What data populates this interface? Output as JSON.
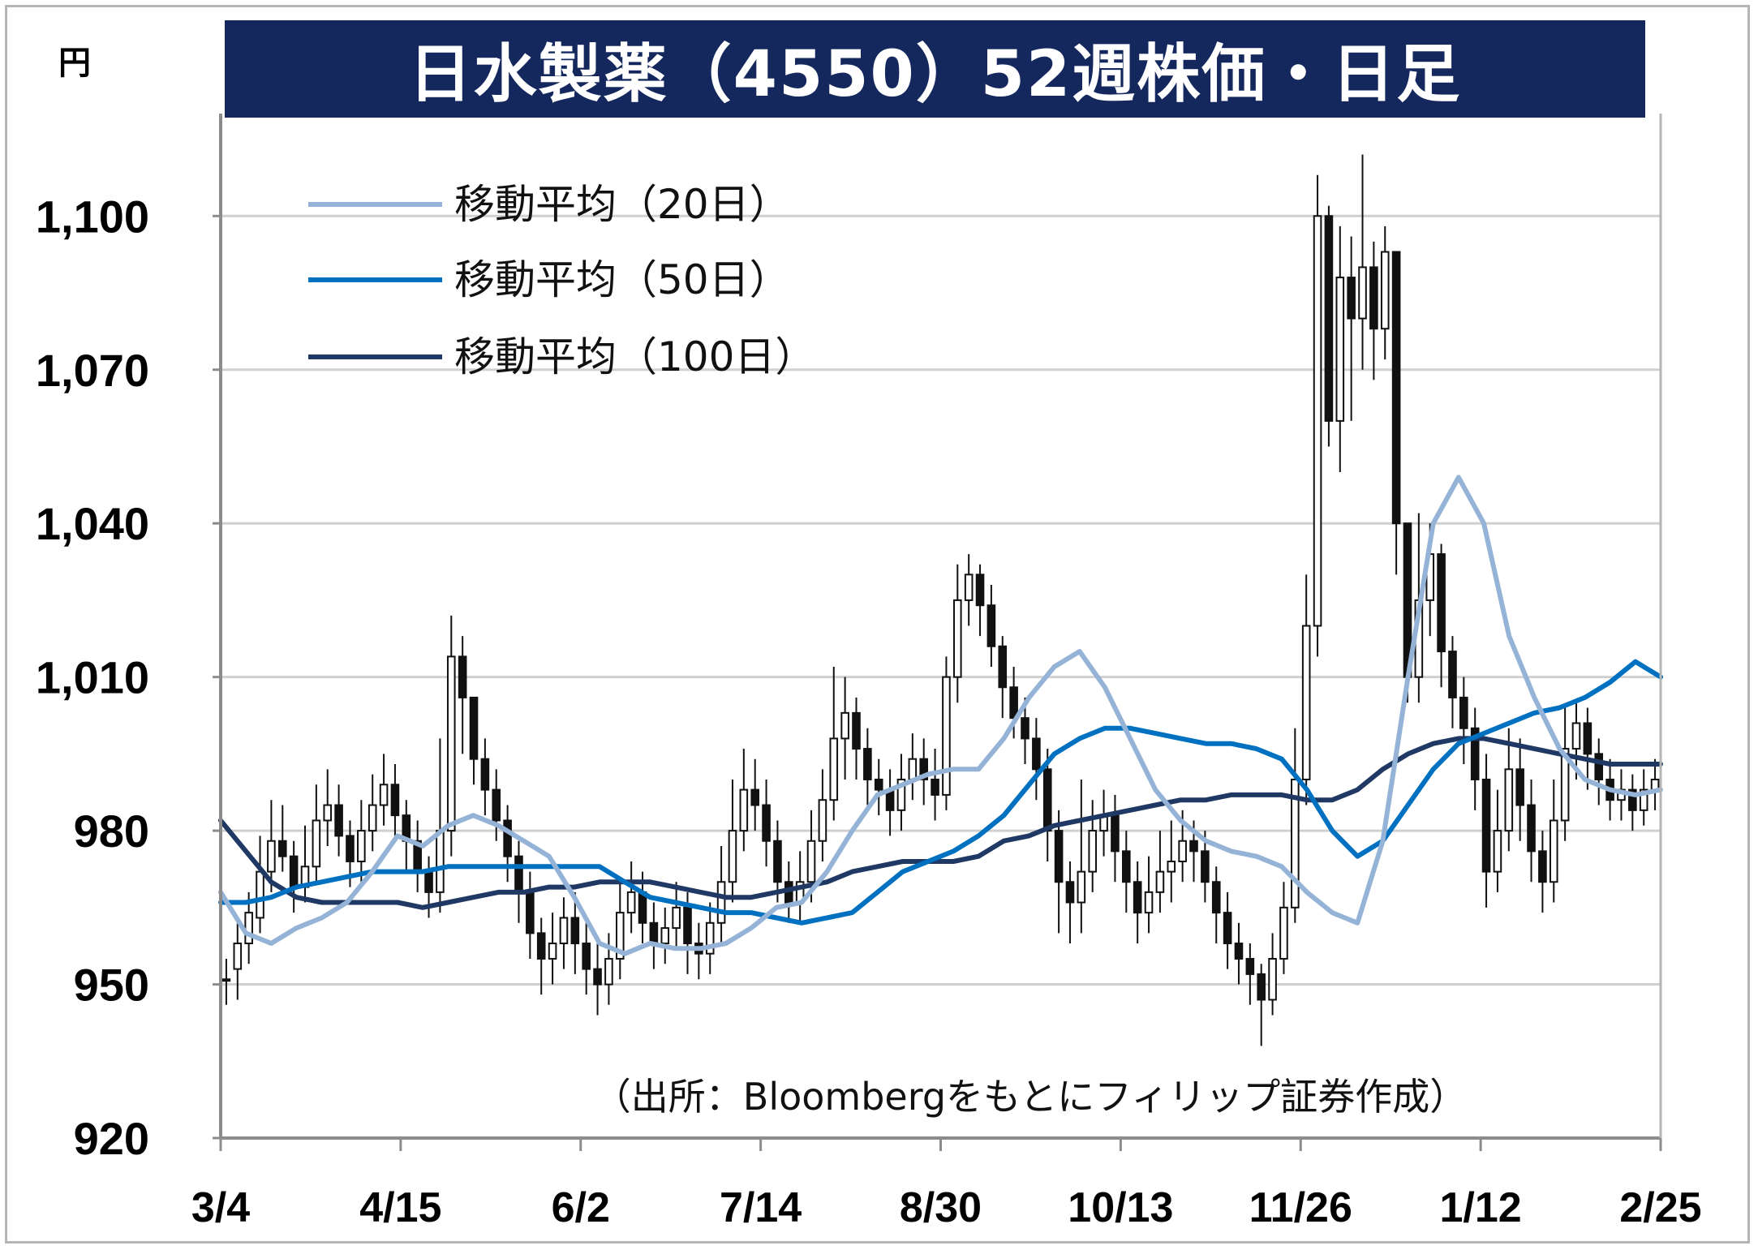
{
  "title": "日水製薬（4550）52週株価・日足",
  "unit": "円",
  "source": "（出所：Bloombergをもとにフィリップ証券作成）",
  "chart_data": {
    "type": "candlestick",
    "title": "日水製薬（4550）52週株価・日足",
    "ylabel": "円",
    "ylim": [
      920,
      1120
    ],
    "yticks": [
      920,
      950,
      980,
      1010,
      1040,
      1070,
      1100
    ],
    "ytick_labels": [
      "920",
      "950",
      "980",
      "1,010",
      "1,040",
      "1,070",
      "1,100"
    ],
    "xtick_labels": [
      "3/4",
      "4/15",
      "6/2",
      "7/14",
      "8/30",
      "10/13",
      "11/26",
      "1/12",
      "2/25"
    ],
    "grid": true,
    "legend_position": "top-left",
    "series": [
      {
        "name": "移動平均（20日）",
        "color": "#95b3d7",
        "values": [
          968,
          960,
          958,
          961,
          963,
          966,
          972,
          979,
          977,
          981,
          983,
          981,
          978,
          975,
          967,
          958,
          956,
          958,
          957,
          957,
          958,
          961,
          965,
          966,
          972,
          980,
          987,
          989,
          991,
          992,
          992,
          998,
          1006,
          1012,
          1015,
          1008,
          998,
          988,
          982,
          978,
          976,
          975,
          973,
          968,
          964,
          962,
          978,
          1010,
          1040,
          1049,
          1040,
          1018,
          1006,
          996,
          990,
          988,
          987,
          988
        ]
      },
      {
        "name": "移動平均（50日）",
        "color": "#0070c0",
        "values": [
          966,
          966,
          967,
          969,
          970,
          971,
          972,
          972,
          972,
          973,
          973,
          973,
          973,
          973,
          973,
          973,
          970,
          967,
          966,
          965,
          964,
          964,
          963,
          962,
          963,
          964,
          968,
          972,
          974,
          976,
          979,
          983,
          989,
          995,
          998,
          1000,
          1000,
          999,
          998,
          997,
          997,
          996,
          994,
          988,
          980,
          975,
          978,
          985,
          992,
          997,
          999,
          1001,
          1003,
          1004,
          1006,
          1009,
          1013,
          1010
        ]
      },
      {
        "name": "移動平均（100日）",
        "color": "#1f3864",
        "values": [
          982,
          976,
          970,
          967,
          966,
          966,
          966,
          966,
          965,
          966,
          967,
          968,
          968,
          969,
          969,
          970,
          970,
          970,
          969,
          968,
          967,
          967,
          968,
          969,
          970,
          972,
          973,
          974,
          974,
          974,
          975,
          978,
          979,
          981,
          982,
          983,
          984,
          985,
          986,
          986,
          987,
          987,
          987,
          986,
          986,
          988,
          992,
          995,
          997,
          998,
          998,
          997,
          996,
          995,
          994,
          993,
          993,
          993
        ]
      }
    ],
    "candles": [
      [
        951,
        951,
        955,
        946
      ],
      [
        953,
        958,
        962,
        947
      ],
      [
        958,
        964,
        968,
        954
      ],
      [
        963,
        972,
        979,
        960
      ],
      [
        972,
        978,
        986,
        968
      ],
      [
        978,
        975,
        985,
        972
      ],
      [
        975,
        969,
        978,
        964
      ],
      [
        969,
        973,
        981,
        966
      ],
      [
        973,
        982,
        989,
        970
      ],
      [
        982,
        985,
        992,
        977
      ],
      [
        985,
        979,
        989,
        975
      ],
      [
        979,
        974,
        982,
        969
      ],
      [
        974,
        980,
        986,
        970
      ],
      [
        980,
        985,
        991,
        976
      ],
      [
        985,
        989,
        995,
        981
      ],
      [
        989,
        983,
        993,
        979
      ],
      [
        983,
        978,
        986,
        972
      ],
      [
        978,
        972,
        982,
        968
      ],
      [
        972,
        968,
        975,
        963
      ],
      [
        968,
        980,
        998,
        964
      ],
      [
        980,
        1014,
        1022,
        975
      ],
      [
        1014,
        1006,
        1018,
        995
      ],
      [
        1006,
        994,
        1002,
        989
      ],
      [
        994,
        988,
        998,
        983
      ],
      [
        988,
        982,
        992,
        978
      ],
      [
        982,
        975,
        985,
        970
      ],
      [
        975,
        968,
        978,
        962
      ],
      [
        968,
        960,
        972,
        955
      ],
      [
        960,
        955,
        963,
        948
      ],
      [
        955,
        958,
        964,
        950
      ],
      [
        958,
        963,
        967,
        953
      ],
      [
        963,
        958,
        968,
        952
      ],
      [
        958,
        953,
        962,
        948
      ],
      [
        953,
        950,
        958,
        944
      ],
      [
        950,
        955,
        960,
        946
      ],
      [
        955,
        964,
        970,
        951
      ],
      [
        964,
        968,
        974,
        960
      ],
      [
        968,
        962,
        972,
        958
      ],
      [
        962,
        958,
        966,
        953
      ],
      [
        958,
        961,
        965,
        954
      ],
      [
        961,
        965,
        970,
        957
      ],
      [
        965,
        958,
        968,
        952
      ],
      [
        958,
        956,
        962,
        951
      ],
      [
        956,
        962,
        966,
        952
      ],
      [
        962,
        970,
        977,
        958
      ],
      [
        970,
        980,
        990,
        966
      ],
      [
        980,
        988,
        996,
        976
      ],
      [
        988,
        985,
        994,
        980
      ],
      [
        985,
        978,
        990,
        973
      ],
      [
        978,
        970,
        982,
        966
      ],
      [
        970,
        966,
        974,
        962
      ],
      [
        966,
        970,
        976,
        962
      ],
      [
        970,
        978,
        984,
        966
      ],
      [
        978,
        986,
        992,
        974
      ],
      [
        986,
        998,
        1012,
        982
      ],
      [
        998,
        1003,
        1010,
        990
      ],
      [
        1003,
        996,
        1006,
        990
      ],
      [
        996,
        990,
        1000,
        985
      ],
      [
        990,
        988,
        994,
        983
      ],
      [
        988,
        984,
        992,
        979
      ],
      [
        984,
        990,
        995,
        980
      ],
      [
        990,
        994,
        999,
        986
      ],
      [
        994,
        990,
        998,
        985
      ],
      [
        990,
        987,
        996,
        982
      ],
      [
        987,
        1010,
        1014,
        984
      ],
      [
        1010,
        1025,
        1032,
        1005
      ],
      [
        1025,
        1030,
        1034,
        1020
      ],
      [
        1030,
        1024,
        1032,
        1018
      ],
      [
        1024,
        1016,
        1028,
        1012
      ],
      [
        1016,
        1008,
        1018,
        1002
      ],
      [
        1008,
        1002,
        1012,
        998
      ],
      [
        1002,
        998,
        1006,
        993
      ],
      [
        998,
        992,
        1002,
        986
      ],
      [
        992,
        980,
        996,
        974
      ],
      [
        980,
        970,
        984,
        960
      ],
      [
        970,
        966,
        974,
        958
      ],
      [
        966,
        972,
        990,
        960
      ],
      [
        972,
        980,
        986,
        968
      ],
      [
        980,
        983,
        988,
        975
      ],
      [
        983,
        976,
        987,
        970
      ],
      [
        976,
        970,
        980,
        964
      ],
      [
        970,
        964,
        974,
        958
      ],
      [
        964,
        968,
        975,
        960
      ],
      [
        968,
        972,
        980,
        964
      ],
      [
        972,
        974,
        982,
        966
      ],
      [
        974,
        978,
        984,
        970
      ],
      [
        978,
        976,
        982,
        970
      ],
      [
        976,
        970,
        980,
        966
      ],
      [
        970,
        964,
        973,
        958
      ],
      [
        964,
        958,
        968,
        953
      ],
      [
        958,
        955,
        962,
        950
      ],
      [
        955,
        952,
        958,
        946
      ],
      [
        952,
        947,
        954,
        938
      ],
      [
        947,
        955,
        960,
        944
      ],
      [
        955,
        965,
        970,
        952
      ],
      [
        965,
        990,
        1000,
        962
      ],
      [
        990,
        1020,
        1030,
        985
      ],
      [
        1020,
        1100,
        1108,
        1014
      ],
      [
        1100,
        1060,
        1102,
        1055
      ],
      [
        1060,
        1088,
        1098,
        1050
      ],
      [
        1088,
        1080,
        1096,
        1060
      ],
      [
        1080,
        1090,
        1112,
        1070
      ],
      [
        1090,
        1078,
        1095,
        1068
      ],
      [
        1078,
        1093,
        1098,
        1072
      ],
      [
        1093,
        1040,
        1048,
        1030
      ],
      [
        1040,
        1010,
        1030,
        1005
      ],
      [
        1010,
        1025,
        1042,
        1005
      ],
      [
        1025,
        1034,
        1040,
        1018
      ],
      [
        1034,
        1015,
        1036,
        1008
      ],
      [
        1015,
        1006,
        1018,
        1000
      ],
      [
        1006,
        1000,
        1010,
        993
      ],
      [
        1000,
        990,
        1004,
        984
      ],
      [
        990,
        972,
        995,
        965
      ],
      [
        972,
        980,
        988,
        968
      ],
      [
        980,
        992,
        1000,
        976
      ],
      [
        992,
        985,
        998,
        978
      ],
      [
        985,
        976,
        990,
        970
      ],
      [
        976,
        970,
        980,
        964
      ],
      [
        970,
        982,
        990,
        966
      ],
      [
        982,
        996,
        1004,
        978
      ],
      [
        996,
        1001,
        1005,
        990
      ],
      [
        1001,
        995,
        1004,
        988
      ],
      [
        995,
        990,
        998,
        985
      ],
      [
        990,
        986,
        994,
        982
      ],
      [
        986,
        988,
        992,
        982
      ],
      [
        988,
        984,
        991,
        980
      ],
      [
        984,
        988,
        992,
        981
      ],
      [
        988,
        990,
        994,
        984
      ]
    ]
  }
}
